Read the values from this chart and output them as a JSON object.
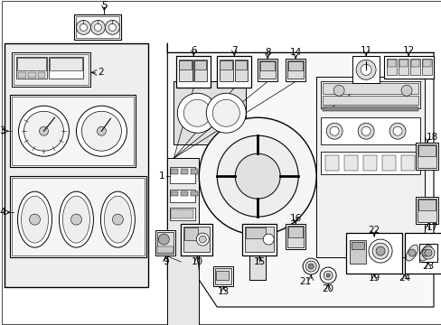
{
  "bg": "#ffffff",
  "lc": "#000000",
  "gray1": "#cccccc",
  "gray2": "#aaaaaa",
  "gray3": "#888888",
  "gray_fill": "#e8e8e8",
  "fig_w": 4.89,
  "fig_h": 3.6,
  "dpi": 100
}
